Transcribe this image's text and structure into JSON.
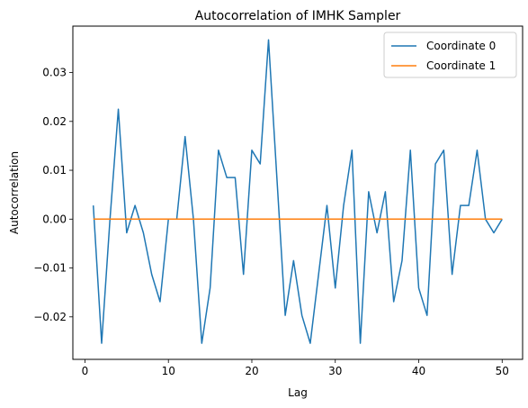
{
  "chart_data": {
    "type": "line",
    "title": "Autocorrelation of IMHK Sampler",
    "xlabel": "Lag",
    "ylabel": "Autocorrelation",
    "xlim": [
      -1.45,
      52.45
    ],
    "ylim": [
      -0.0287,
      0.0395
    ],
    "xticks": [
      0,
      10,
      20,
      30,
      40,
      50
    ],
    "xtick_labels": [
      "0",
      "10",
      "20",
      "30",
      "40",
      "50"
    ],
    "yticks": [
      -0.02,
      -0.01,
      0.0,
      0.01,
      0.02,
      0.03
    ],
    "ytick_labels": [
      "−0.02",
      "−0.01",
      "0.00",
      "0.01",
      "0.02",
      "0.03"
    ],
    "grid": false,
    "legend": "top-right",
    "x": [
      1,
      2,
      3,
      4,
      5,
      6,
      7,
      8,
      9,
      10,
      11,
      12,
      13,
      14,
      15,
      16,
      17,
      18,
      19,
      20,
      21,
      22,
      23,
      24,
      25,
      26,
      27,
      28,
      29,
      30,
      31,
      32,
      33,
      34,
      35,
      36,
      37,
      38,
      39,
      40,
      41,
      42,
      43,
      44,
      45,
      46,
      47,
      48,
      49,
      50
    ],
    "series": [
      {
        "name": "Coordinate 0",
        "color": "#1f77b4",
        "values": [
          0.0028,
          -0.0254,
          0.0,
          0.0225,
          -0.0028,
          0.0028,
          -0.0028,
          -0.0113,
          -0.0169,
          0.0,
          0.0,
          0.0169,
          0.0,
          -0.0254,
          -0.0141,
          0.0141,
          0.0085,
          0.0085,
          -0.0113,
          0.0141,
          0.0113,
          0.0367,
          0.0085,
          -0.0197,
          -0.0085,
          -0.0197,
          -0.0254,
          -0.0113,
          0.0028,
          -0.0141,
          0.0028,
          0.0141,
          -0.0254,
          0.0056,
          -0.0028,
          0.0056,
          -0.0169,
          -0.0085,
          0.0141,
          -0.0141,
          -0.0197,
          0.0113,
          0.0141,
          -0.0113,
          0.0028,
          0.0028,
          0.0141,
          0.0,
          -0.0028,
          0.0
        ]
      },
      {
        "name": "Coordinate 1",
        "color": "#ff7f0e",
        "values": [
          0,
          0,
          0,
          0,
          0,
          0,
          0,
          0,
          0,
          0,
          0,
          0,
          0,
          0,
          0,
          0,
          0,
          0,
          0,
          0,
          0,
          0,
          0,
          0,
          0,
          0,
          0,
          0,
          0,
          0,
          0,
          0,
          0,
          0,
          0,
          0,
          0,
          0,
          0,
          0,
          0,
          0,
          0,
          0,
          0,
          0,
          0,
          0,
          0,
          0
        ]
      }
    ]
  }
}
